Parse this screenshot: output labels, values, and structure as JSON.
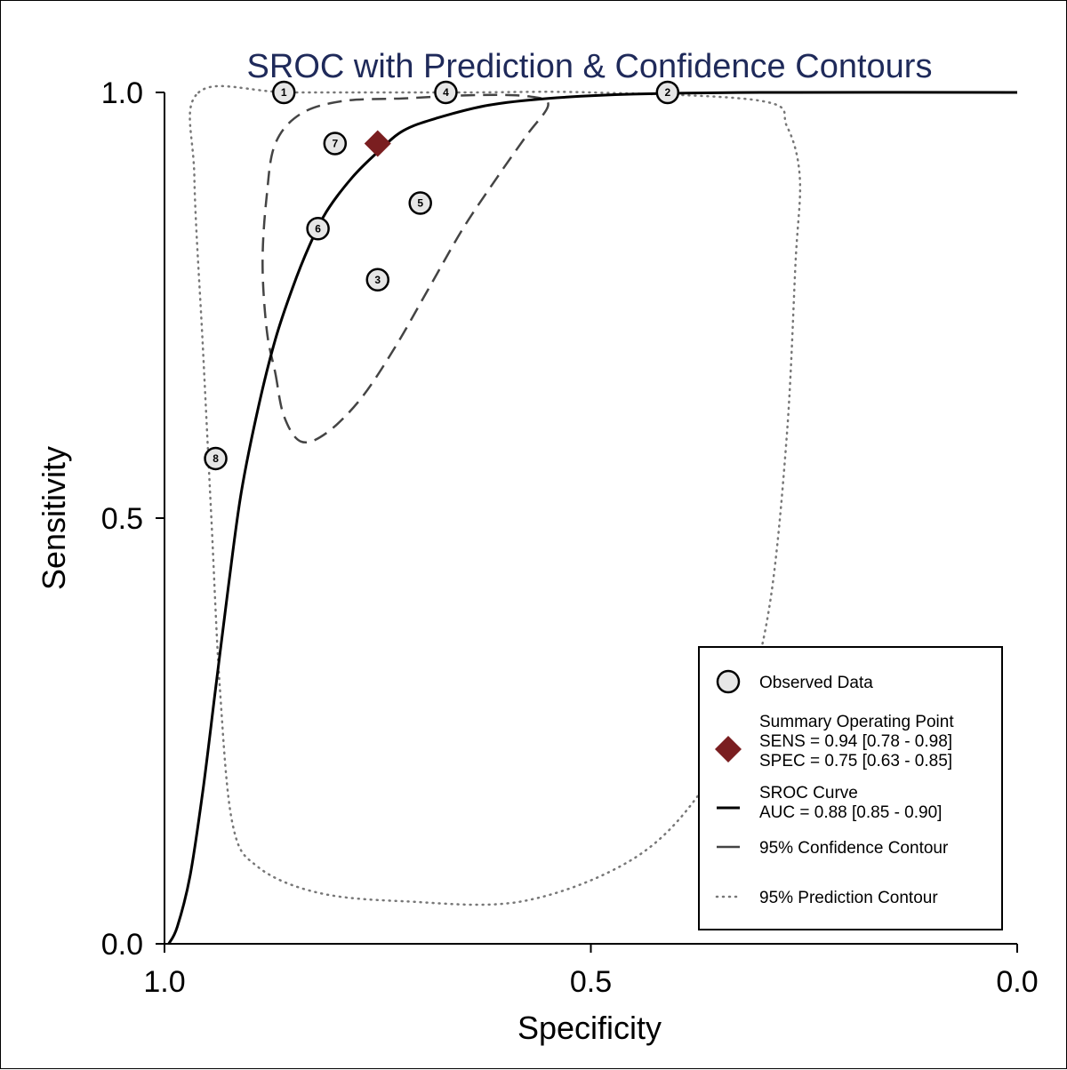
{
  "chart_data": {
    "type": "scatter",
    "title": "SROC with Prediction & Confidence Contours",
    "xlabel": "Specificity",
    "ylabel": "Sensitivity",
    "xlim": [
      1.0,
      0.0
    ],
    "ylim": [
      0.0,
      1.0
    ],
    "x_reversed": true,
    "x_ticks": [
      "1.0",
      "0.5",
      "0.0"
    ],
    "y_ticks": [
      "0.0",
      "0.5",
      "1.0"
    ],
    "grid": false,
    "legend_position": "bottom-right",
    "observed_data": [
      {
        "label": "1",
        "spec": 0.86,
        "sens": 1.0
      },
      {
        "label": "4",
        "spec": 0.67,
        "sens": 1.0
      },
      {
        "label": "2",
        "spec": 0.41,
        "sens": 1.0
      },
      {
        "label": "7",
        "spec": 0.8,
        "sens": 0.94
      },
      {
        "label": "5",
        "spec": 0.7,
        "sens": 0.87
      },
      {
        "label": "6",
        "spec": 0.82,
        "sens": 0.84
      },
      {
        "label": "3",
        "spec": 0.75,
        "sens": 0.78
      },
      {
        "label": "8",
        "spec": 0.94,
        "sens": 0.57
      }
    ],
    "summary_point": {
      "spec": 0.75,
      "sens": 0.94
    },
    "sroc_curve": [
      [
        0.995,
        0.0
      ],
      [
        0.985,
        0.02
      ],
      [
        0.97,
        0.08
      ],
      [
        0.955,
        0.18
      ],
      [
        0.94,
        0.3
      ],
      [
        0.925,
        0.42
      ],
      [
        0.91,
        0.53
      ],
      [
        0.89,
        0.63
      ],
      [
        0.87,
        0.71
      ],
      [
        0.85,
        0.77
      ],
      [
        0.83,
        0.82
      ],
      [
        0.81,
        0.86
      ],
      [
        0.78,
        0.9
      ],
      [
        0.75,
        0.93
      ],
      [
        0.72,
        0.955
      ],
      [
        0.68,
        0.97
      ],
      [
        0.62,
        0.985
      ],
      [
        0.55,
        0.993
      ],
      [
        0.45,
        0.998
      ],
      [
        0.3,
        1.0
      ],
      [
        0.0,
        1.0
      ]
    ],
    "confidence_contour": [
      [
        0.87,
        0.67
      ],
      [
        0.86,
        0.62
      ],
      [
        0.84,
        0.59
      ],
      [
        0.81,
        0.6
      ],
      [
        0.77,
        0.64
      ],
      [
        0.73,
        0.7
      ],
      [
        0.69,
        0.77
      ],
      [
        0.65,
        0.84
      ],
      [
        0.61,
        0.9
      ],
      [
        0.575,
        0.95
      ],
      [
        0.55,
        0.985
      ],
      [
        0.57,
        0.995
      ],
      [
        0.63,
        0.997
      ],
      [
        0.72,
        0.993
      ],
      [
        0.79,
        0.99
      ],
      [
        0.84,
        0.975
      ],
      [
        0.87,
        0.94
      ],
      [
        0.88,
        0.88
      ],
      [
        0.885,
        0.8
      ],
      [
        0.88,
        0.72
      ],
      [
        0.87,
        0.67
      ]
    ],
    "prediction_contour": [
      [
        0.96,
        1.0
      ],
      [
        0.85,
        1.0
      ],
      [
        0.65,
        1.0
      ],
      [
        0.5,
        1.0
      ],
      [
        0.3,
        0.99
      ],
      [
        0.27,
        0.96
      ],
      [
        0.255,
        0.9
      ],
      [
        0.26,
        0.8
      ],
      [
        0.27,
        0.6
      ],
      [
        0.29,
        0.4
      ],
      [
        0.32,
        0.28
      ],
      [
        0.37,
        0.18
      ],
      [
        0.45,
        0.1
      ],
      [
        0.58,
        0.05
      ],
      [
        0.72,
        0.05
      ],
      [
        0.82,
        0.06
      ],
      [
        0.89,
        0.09
      ],
      [
        0.92,
        0.14
      ],
      [
        0.935,
        0.3
      ],
      [
        0.945,
        0.5
      ],
      [
        0.955,
        0.7
      ],
      [
        0.965,
        0.9
      ],
      [
        0.96,
        1.0
      ]
    ],
    "legend": [
      {
        "key": "observed",
        "lines": [
          "Observed Data"
        ]
      },
      {
        "key": "summary",
        "lines": [
          "Summary Operating Point",
          "SENS = 0.94 [0.78 - 0.98]",
          "SPEC = 0.75 [0.63 - 0.85]"
        ]
      },
      {
        "key": "sroc",
        "lines": [
          "SROC Curve",
          "AUC = 0.88 [0.85 - 0.90]"
        ]
      },
      {
        "key": "confidence",
        "lines": [
          "95% Confidence Contour"
        ]
      },
      {
        "key": "prediction",
        "lines": [
          "95% Prediction Contour"
        ]
      }
    ],
    "colors": {
      "title": "#1f2a5a",
      "summary_point": "#7a1e20",
      "observed_fill": "#e6e6e6",
      "curve": "#000000",
      "confidence": "#444444",
      "prediction": "#777777"
    }
  }
}
